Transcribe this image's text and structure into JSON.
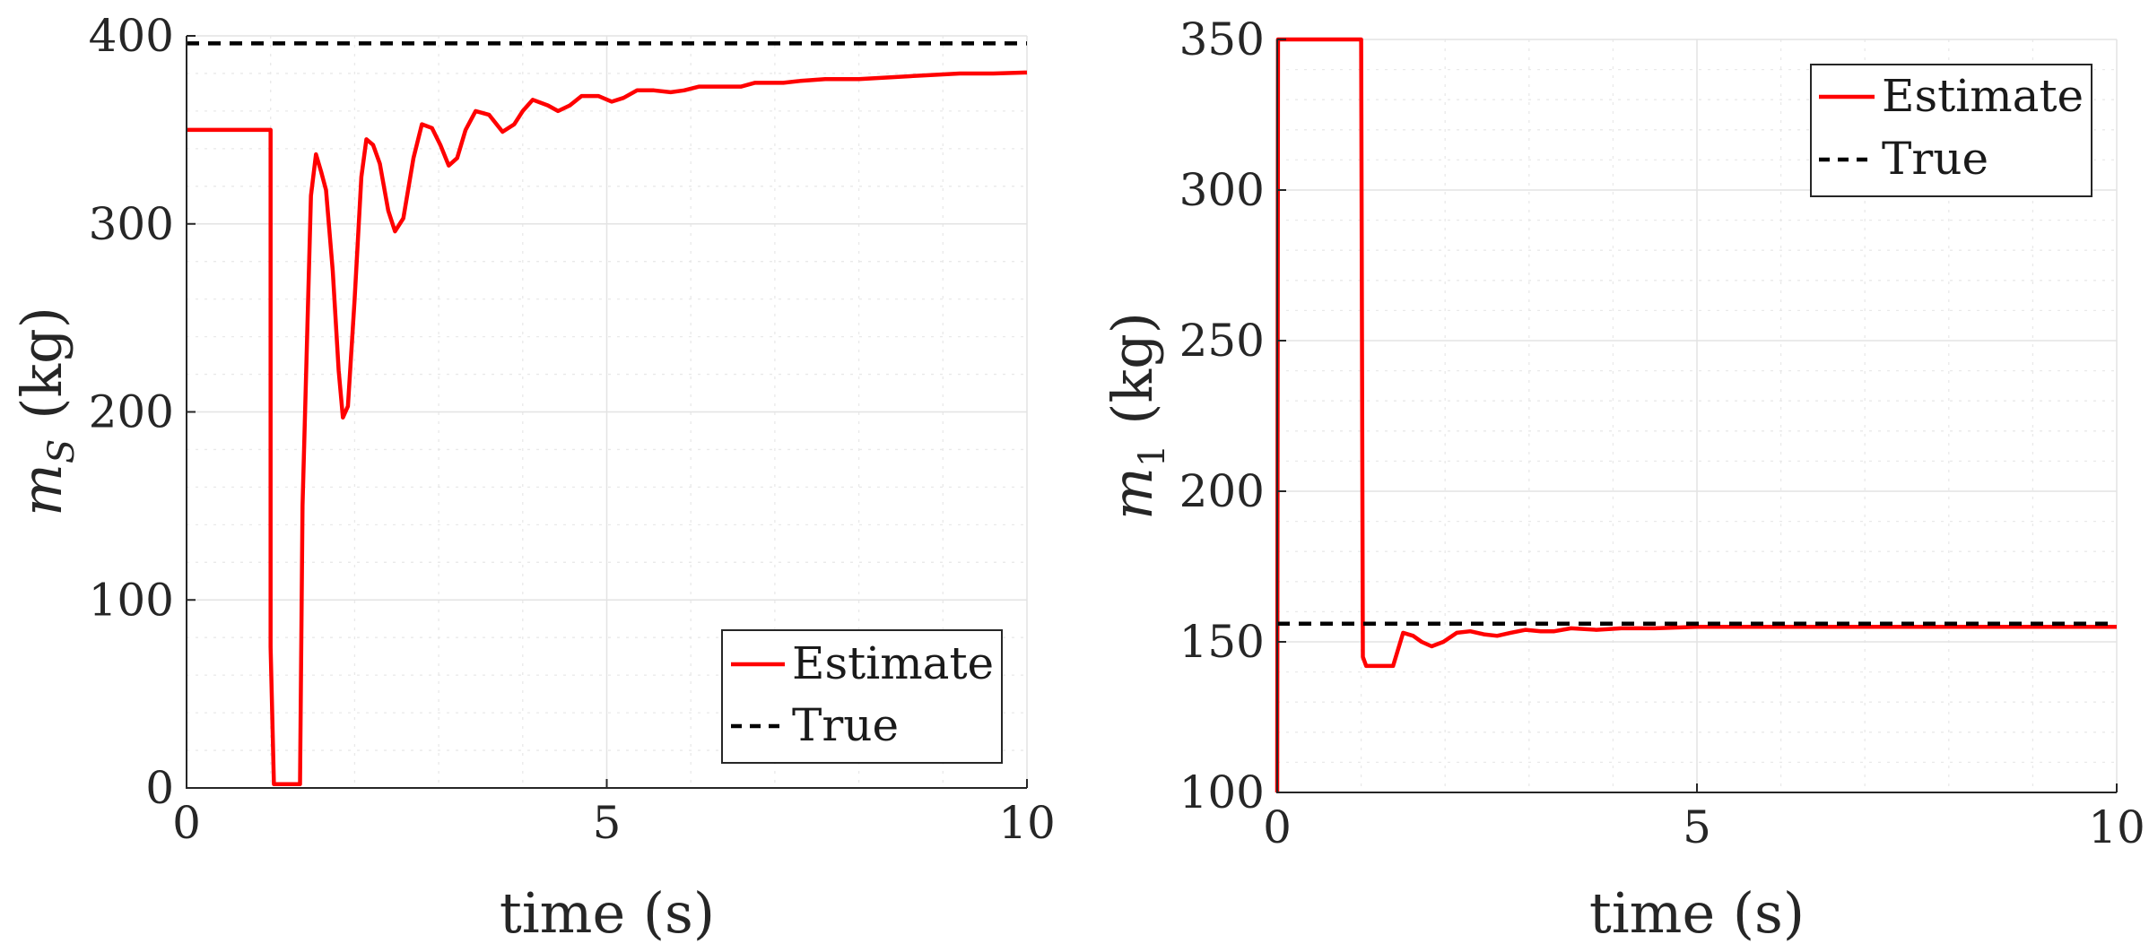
{
  "chart_data": [
    {
      "type": "line",
      "xlabel": "time (s)",
      "ylabel_symbol": "m",
      "ylabel_subscript": "S",
      "ylabel_unit": "(kg)",
      "xlim": [
        0,
        10
      ],
      "ylim": [
        0,
        400
      ],
      "xticks": [
        0,
        5,
        10
      ],
      "xtick_labels": [
        "0",
        "5",
        "10"
      ],
      "yticks": [
        0,
        100,
        200,
        300,
        400
      ],
      "ytick_labels": [
        "0",
        "100",
        "200",
        "300",
        "400"
      ],
      "grid": true,
      "minor_grid": true,
      "legend_position": "bottom-right",
      "series": [
        {
          "name": "Estimate",
          "color": "#ff0000",
          "style": "solid",
          "points": [
            [
              0,
              350
            ],
            [
              1.0,
              350
            ],
            [
              1.0,
              75
            ],
            [
              1.04,
              2
            ],
            [
              1.35,
              2
            ],
            [
              1.38,
              150
            ],
            [
              1.48,
              315
            ],
            [
              1.54,
              337
            ],
            [
              1.6,
              328
            ],
            [
              1.66,
              318
            ],
            [
              1.74,
              275
            ],
            [
              1.81,
              222
            ],
            [
              1.86,
              197
            ],
            [
              1.92,
              203
            ],
            [
              2.0,
              260
            ],
            [
              2.08,
              325
            ],
            [
              2.14,
              345
            ],
            [
              2.22,
              342
            ],
            [
              2.3,
              332
            ],
            [
              2.4,
              307
            ],
            [
              2.48,
              296
            ],
            [
              2.58,
              303
            ],
            [
              2.7,
              335
            ],
            [
              2.8,
              353
            ],
            [
              2.92,
              351
            ],
            [
              3.02,
              342
            ],
            [
              3.12,
              331
            ],
            [
              3.22,
              335
            ],
            [
              3.32,
              350
            ],
            [
              3.44,
              360
            ],
            [
              3.6,
              358
            ],
            [
              3.76,
              349
            ],
            [
              3.9,
              353
            ],
            [
              4.0,
              360
            ],
            [
              4.12,
              366
            ],
            [
              4.3,
              363
            ],
            [
              4.42,
              360
            ],
            [
              4.56,
              363
            ],
            [
              4.7,
              368
            ],
            [
              4.9,
              368
            ],
            [
              5.06,
              365
            ],
            [
              5.2,
              367
            ],
            [
              5.36,
              371
            ],
            [
              5.56,
              371
            ],
            [
              5.76,
              370
            ],
            [
              5.92,
              371
            ],
            [
              6.1,
              373
            ],
            [
              6.4,
              373
            ],
            [
              6.6,
              373
            ],
            [
              6.76,
              375
            ],
            [
              7.1,
              375
            ],
            [
              7.3,
              376
            ],
            [
              7.6,
              377
            ],
            [
              8.0,
              377
            ],
            [
              8.4,
              378
            ],
            [
              8.8,
              379
            ],
            [
              9.2,
              380
            ],
            [
              9.6,
              380
            ],
            [
              10,
              380.5
            ]
          ]
        },
        {
          "name": "True",
          "color": "#000000",
          "style": "dashed",
          "points": [
            [
              0,
              396
            ],
            [
              10,
              396
            ]
          ]
        }
      ]
    },
    {
      "type": "line",
      "xlabel": "time (s)",
      "ylabel_symbol": "m",
      "ylabel_subscript": "1",
      "ylabel_unit": "(kg)",
      "xlim": [
        0,
        10
      ],
      "ylim": [
        100,
        350
      ],
      "xticks": [
        0,
        5,
        10
      ],
      "xtick_labels": [
        "0",
        "5",
        "10"
      ],
      "yticks": [
        100,
        150,
        200,
        250,
        300,
        350
      ],
      "ytick_labels": [
        "100",
        "150",
        "200",
        "250",
        "300",
        "350"
      ],
      "grid": true,
      "minor_grid": true,
      "legend_position": "top-right",
      "series": [
        {
          "name": "Estimate",
          "color": "#ff0000",
          "style": "solid",
          "points": [
            [
              0,
              100
            ],
            [
              0.01,
              350
            ],
            [
              1.0,
              350
            ],
            [
              1.02,
              145
            ],
            [
              1.06,
              142
            ],
            [
              1.38,
              142
            ],
            [
              1.5,
              153
            ],
            [
              1.62,
              152
            ],
            [
              1.72,
              150
            ],
            [
              1.84,
              148.5
            ],
            [
              1.98,
              150
            ],
            [
              2.14,
              153
            ],
            [
              2.3,
              153.5
            ],
            [
              2.46,
              152.5
            ],
            [
              2.62,
              152
            ],
            [
              2.78,
              153
            ],
            [
              2.96,
              154
            ],
            [
              3.14,
              153.5
            ],
            [
              3.3,
              153.5
            ],
            [
              3.5,
              154.5
            ],
            [
              3.8,
              154
            ],
            [
              4.1,
              154.5
            ],
            [
              4.5,
              154.5
            ],
            [
              5.0,
              155
            ],
            [
              6.0,
              155
            ],
            [
              7.0,
              155
            ],
            [
              8.0,
              155
            ],
            [
              9.0,
              155
            ],
            [
              10,
              155
            ]
          ]
        },
        {
          "name": "True",
          "color": "#000000",
          "style": "dashed",
          "points": [
            [
              0,
              156
            ],
            [
              10,
              156
            ]
          ]
        }
      ]
    }
  ]
}
